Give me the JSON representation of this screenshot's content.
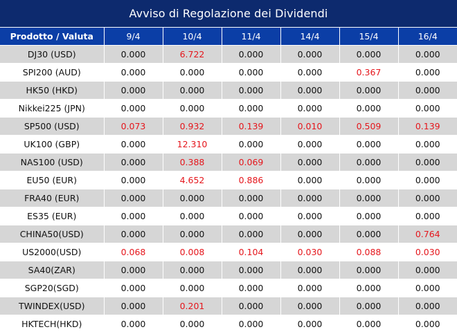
{
  "title": "Avviso di Regolazione dei Dividendi",
  "header": [
    "Prodotto / Valuta",
    "9/4",
    "10/4",
    "11/4",
    "14/4",
    "15/4",
    "16/4"
  ],
  "colors": {
    "title_bg": "#0d2a6e",
    "header_bg": "#0b3ea6",
    "shade": "#d6d6d6",
    "highlight": "#e5161c"
  },
  "rows": [
    {
      "product": "DJ30 (USD)",
      "values": [
        "0.000",
        "6.722",
        "0.000",
        "0.000",
        "0.000",
        "0.000"
      ]
    },
    {
      "product": "SPI200 (AUD)",
      "values": [
        "0.000",
        "0.000",
        "0.000",
        "0.000",
        "0.367",
        "0.000"
      ]
    },
    {
      "product": "HK50 (HKD)",
      "values": [
        "0.000",
        "0.000",
        "0.000",
        "0.000",
        "0.000",
        "0.000"
      ]
    },
    {
      "product": "Nikkei225 (JPN)",
      "values": [
        "0.000",
        "0.000",
        "0.000",
        "0.000",
        "0.000",
        "0.000"
      ]
    },
    {
      "product": "SP500 (USD)",
      "values": [
        "0.073",
        "0.932",
        "0.139",
        "0.010",
        "0.509",
        "0.139"
      ]
    },
    {
      "product": "UK100 (GBP)",
      "values": [
        "0.000",
        "12.310",
        "0.000",
        "0.000",
        "0.000",
        "0.000"
      ]
    },
    {
      "product": "NAS100 (USD)",
      "values": [
        "0.000",
        "0.388",
        "0.069",
        "0.000",
        "0.000",
        "0.000"
      ]
    },
    {
      "product": "EU50 (EUR)",
      "values": [
        "0.000",
        "4.652",
        "0.886",
        "0.000",
        "0.000",
        "0.000"
      ]
    },
    {
      "product": "FRA40 (EUR)",
      "values": [
        "0.000",
        "0.000",
        "0.000",
        "0.000",
        "0.000",
        "0.000"
      ]
    },
    {
      "product": "ES35 (EUR)",
      "values": [
        "0.000",
        "0.000",
        "0.000",
        "0.000",
        "0.000",
        "0.000"
      ]
    },
    {
      "product": "CHINA50(USD)",
      "values": [
        "0.000",
        "0.000",
        "0.000",
        "0.000",
        "0.000",
        "0.764"
      ]
    },
    {
      "product": "US2000(USD)",
      "values": [
        "0.068",
        "0.008",
        "0.104",
        "0.030",
        "0.088",
        "0.030"
      ]
    },
    {
      "product": "SA40(ZAR)",
      "values": [
        "0.000",
        "0.000",
        "0.000",
        "0.000",
        "0.000",
        "0.000"
      ]
    },
    {
      "product": "SGP20(SGD)",
      "values": [
        "0.000",
        "0.000",
        "0.000",
        "0.000",
        "0.000",
        "0.000"
      ]
    },
    {
      "product": "TWINDEX(USD)",
      "values": [
        "0.000",
        "0.201",
        "0.000",
        "0.000",
        "0.000",
        "0.000"
      ]
    },
    {
      "product": "HKTECH(HKD)",
      "values": [
        "0.000",
        "0.000",
        "0.000",
        "0.000",
        "0.000",
        "0.000"
      ]
    }
  ]
}
